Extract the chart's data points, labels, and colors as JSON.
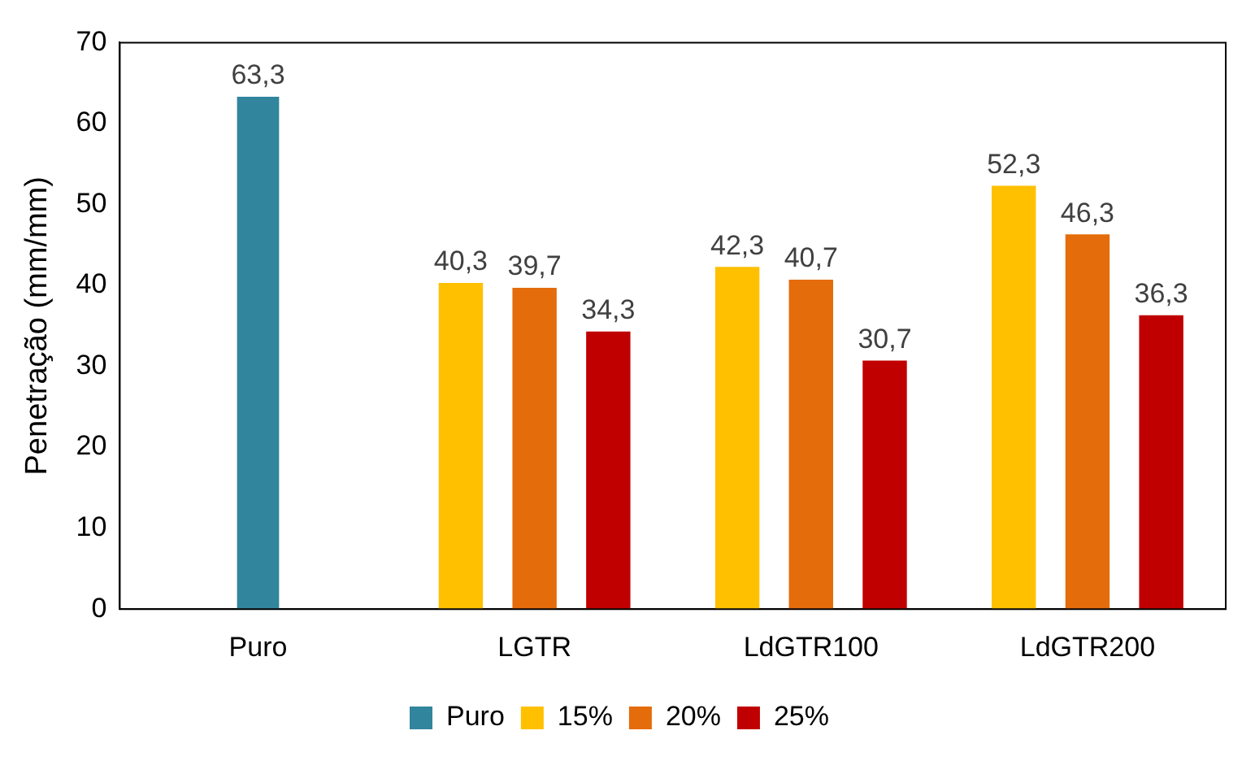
{
  "chart_data": {
    "type": "bar",
    "ylabel": "Penetração (mm/mm)",
    "categories": [
      "Puro",
      "LGTR",
      "LdGTR100",
      "LdGTR200"
    ],
    "series": [
      {
        "name": "Puro",
        "color": "#31859c",
        "values": [
          63.3,
          null,
          null,
          null
        ],
        "value_labels": [
          "63,3",
          null,
          null,
          null
        ]
      },
      {
        "name": "15%",
        "color": "#ffc000",
        "values": [
          null,
          40.3,
          42.3,
          52.3
        ],
        "value_labels": [
          null,
          "40,3",
          "42,3",
          "52,3"
        ]
      },
      {
        "name": "20%",
        "color": "#e46c0a",
        "values": [
          null,
          39.7,
          40.7,
          46.3
        ],
        "value_labels": [
          null,
          "39,7",
          "40,7",
          "46,3"
        ]
      },
      {
        "name": "25%",
        "color": "#c00000",
        "values": [
          null,
          34.3,
          30.7,
          36.3
        ],
        "value_labels": [
          null,
          "34,3",
          "30,7",
          "36,3"
        ]
      }
    ],
    "ylim": [
      0,
      70
    ],
    "yticks": [
      0,
      10,
      20,
      30,
      40,
      50,
      60,
      70
    ],
    "grid": false,
    "legend": "bottom"
  }
}
